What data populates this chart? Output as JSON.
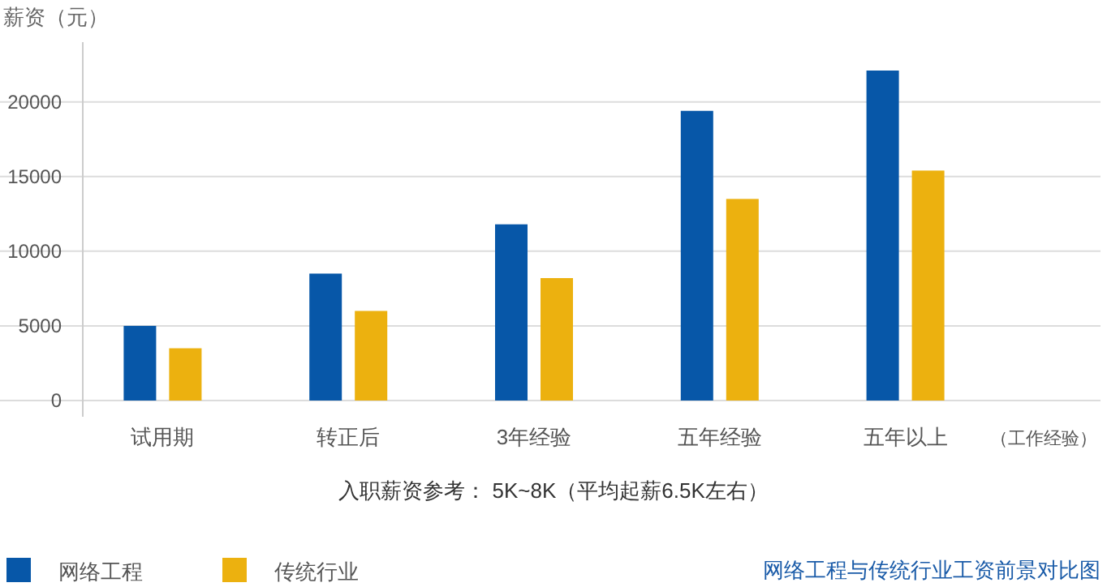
{
  "chart_data": {
    "type": "bar",
    "title": "网络工程与传统行业工资前景对比图",
    "ylabel": "薪资（元）",
    "xlabel": "（工作经验）",
    "categories": [
      "试用期",
      "转正后",
      "3年经验",
      "五年经验",
      "五年以上"
    ],
    "series": [
      {
        "name": "网络工程",
        "color": "#0757a8",
        "values": [
          5000,
          8500,
          11800,
          19400,
          22100
        ]
      },
      {
        "name": "传统行业",
        "color": "#ecb10f",
        "values": [
          3500,
          6000,
          8200,
          13500,
          15400
        ]
      }
    ],
    "ylim": [
      0,
      24000
    ],
    "yticks": [
      0,
      5000,
      10000,
      15000,
      20000
    ],
    "grid": "y",
    "legend": "bottom left",
    "annotations": [
      "入职薪资参考： 5K~8K（平均起薪6.5K左右）"
    ]
  }
}
